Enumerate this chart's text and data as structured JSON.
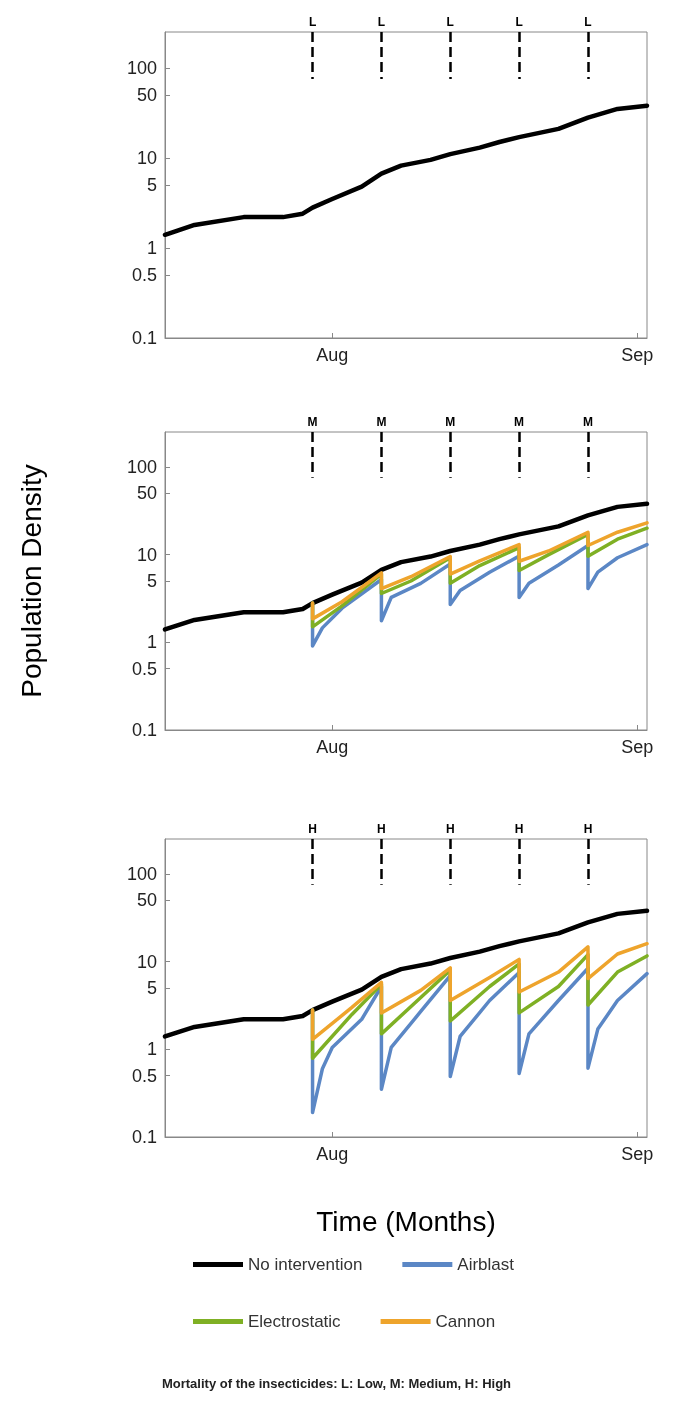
{
  "chart_data": [
    {
      "type": "line",
      "x": [
        "--07-15",
        "--07-18",
        "--07-23",
        "--07-27",
        "--07-29",
        "--07-30",
        "--08-01",
        "--08-04",
        "--08-06",
        "--08-08",
        "--08-11",
        "--08-13",
        "--08-16",
        "--08-18",
        "--08-20",
        "--08-24",
        "--08-27",
        "--08-30",
        "--09-02"
      ],
      "series": [
        {
          "color": "#000000",
          "values": [
            1.4,
            1.8,
            2.2,
            2.2,
            2.4,
            2.8,
            3.5,
            4.8,
            6.7,
            8.2,
            9.5,
            11,
            13,
            15,
            17,
            21,
            28,
            35,
            38
          ]
        }
      ],
      "xlim": [
        "--07-15",
        "--09-02"
      ],
      "xticks": [
        {
          "value": "--08-01",
          "label": "Aug"
        },
        {
          "value": "--09-01",
          "label": "Sep"
        }
      ],
      "ylim": [
        0.1,
        250
      ],
      "yticks": [
        0.1,
        0.5,
        1,
        5,
        10,
        50,
        100
      ],
      "log": "y",
      "grid": false,
      "legend": false,
      "marker": "none",
      "ref_lines": [
        {
          "axis": "x",
          "value": "--07-30",
          "label": "L",
          "line_style": "dashed",
          "color": "#000000"
        },
        {
          "axis": "x",
          "value": "--08-06",
          "label": "L",
          "line_style": "dashed",
          "color": "#000000"
        },
        {
          "axis": "x",
          "value": "--08-13",
          "label": "L",
          "line_style": "dashed",
          "color": "#000000"
        },
        {
          "axis": "x",
          "value": "--08-20",
          "label": "L",
          "line_style": "dashed",
          "color": "#000000"
        },
        {
          "axis": "x",
          "value": "--08-27",
          "label": "L",
          "line_style": "dashed",
          "color": "#000000"
        }
      ]
    },
    {
      "type": "line",
      "ylabel": "Population Density",
      "x": [
        "--07-15",
        "--07-18",
        "--07-23",
        "--07-27",
        "--07-29",
        "--07-30",
        "--08-01",
        "--08-04",
        "--08-06",
        "--08-08",
        "--08-11",
        "--08-13",
        "--08-16",
        "--08-18",
        "--08-20",
        "--08-24",
        "--08-27",
        "--08-30",
        "--09-02"
      ],
      "series": [
        {
          "color": "#000000",
          "values": [
            1.4,
            1.8,
            2.2,
            2.2,
            2.4,
            2.8,
            3.5,
            4.8,
            6.7,
            8.2,
            9.5,
            11,
            13,
            15,
            17,
            21,
            28,
            35,
            38
          ]
        },
        {
          "color": "#5b87c5",
          "x": [
            "--07-30",
            "--07-30",
            "--07-31",
            "--08-02",
            "--08-06",
            "--08-06",
            "--08-07",
            "--08-10",
            "--08-13",
            "--08-13",
            "--08-14",
            "--08-17",
            "--08-20",
            "--08-20",
            "--08-21",
            "--08-24",
            "--08-27",
            "--08-27",
            "--08-28",
            "--08-30",
            "--09-02"
          ],
          "values": [
            2.8,
            0.91,
            1.46,
            2.45,
            5.2,
            1.76,
            3.25,
            4.7,
            7.8,
            2.7,
            3.9,
            6.3,
            9.6,
            3.25,
            4.7,
            7.6,
            12.7,
            4.1,
            6.3,
            9.2,
            13
          ]
        },
        {
          "color": "#7fb024",
          "x": [
            "--07-30",
            "--07-30",
            "--08-02",
            "--08-06",
            "--08-06",
            "--08-09",
            "--08-13",
            "--08-13",
            "--08-16",
            "--08-20",
            "--08-20",
            "--08-23",
            "--08-27",
            "--08-27",
            "--08-30",
            "--09-02"
          ],
          "values": [
            2.8,
            1.5,
            2.6,
            6,
            3.6,
            5,
            9.2,
            4.7,
            7.5,
            12,
            6.6,
            10,
            17,
            9.6,
            15,
            20
          ]
        },
        {
          "color": "#eea42c",
          "x": [
            "--07-30",
            "--07-30",
            "--08-02",
            "--08-06",
            "--08-06",
            "--08-09",
            "--08-13",
            "--08-13",
            "--08-16",
            "--08-20",
            "--08-20",
            "--08-23",
            "--08-27",
            "--08-27",
            "--08-30",
            "--09-02"
          ],
          "values": [
            2.8,
            1.85,
            2.9,
            6.2,
            4.1,
            5.6,
            9.5,
            6,
            8.5,
            13,
            8.4,
            11,
            18,
            12.7,
            18,
            23
          ]
        }
      ],
      "xlim": [
        "--07-15",
        "--09-02"
      ],
      "xticks": [
        {
          "value": "--08-01",
          "label": "Aug"
        },
        {
          "value": "--09-01",
          "label": "Sep"
        }
      ],
      "ylim": [
        0.1,
        250
      ],
      "yticks": [
        0.1,
        0.5,
        1,
        5,
        10,
        50,
        100
      ],
      "log": "y",
      "grid": false,
      "legend": false,
      "marker": "none",
      "ref_lines": [
        {
          "axis": "x",
          "value": "--07-30",
          "label": "M",
          "line_style": "dashed",
          "color": "#000000"
        },
        {
          "axis": "x",
          "value": "--08-06",
          "label": "M",
          "line_style": "dashed",
          "color": "#000000"
        },
        {
          "axis": "x",
          "value": "--08-13",
          "label": "M",
          "line_style": "dashed",
          "color": "#000000"
        },
        {
          "axis": "x",
          "value": "--08-20",
          "label": "M",
          "line_style": "dashed",
          "color": "#000000"
        },
        {
          "axis": "x",
          "value": "--08-27",
          "label": "M",
          "line_style": "dashed",
          "color": "#000000"
        }
      ]
    },
    {
      "type": "line",
      "xlabel": "Time (Months)",
      "x": [
        "--07-15",
        "--07-18",
        "--07-23",
        "--07-27",
        "--07-29",
        "--07-30",
        "--08-01",
        "--08-04",
        "--08-06",
        "--08-08",
        "--08-11",
        "--08-13",
        "--08-16",
        "--08-18",
        "--08-20",
        "--08-24",
        "--08-27",
        "--08-30",
        "--09-02"
      ],
      "series": [
        {
          "name": "No intervention",
          "color": "#000000",
          "values": [
            1.4,
            1.8,
            2.2,
            2.2,
            2.4,
            2.8,
            3.5,
            4.8,
            6.7,
            8.2,
            9.5,
            11,
            13,
            15,
            17,
            21,
            28,
            35,
            38
          ]
        },
        {
          "name": "Airblast",
          "color": "#5b87c5",
          "x": [
            "--07-30",
            "--07-30",
            "--07-31",
            "--08-01",
            "--08-04",
            "--08-06",
            "--08-06",
            "--08-07",
            "--08-10",
            "--08-13",
            "--08-13",
            "--08-14",
            "--08-17",
            "--08-20",
            "--08-20",
            "--08-21",
            "--08-24",
            "--08-27",
            "--08-27",
            "--08-28",
            "--08-30",
            "--09-02"
          ],
          "values": [
            2.8,
            0.19,
            0.6,
            1.05,
            2.2,
            5.2,
            0.35,
            1.05,
            2.7,
            6.9,
            0.49,
            1.4,
            3.6,
            7.5,
            0.53,
            1.5,
            3.6,
            8.4,
            0.61,
            1.7,
            3.6,
            7.3
          ]
        },
        {
          "name": "Electrostatic",
          "color": "#7fb024",
          "x": [
            "--07-30",
            "--07-30",
            "--08-03",
            "--08-06",
            "--08-06",
            "--08-10",
            "--08-13",
            "--08-13",
            "--08-17",
            "--08-20",
            "--08-20",
            "--08-24",
            "--08-27",
            "--08-27",
            "--08-30",
            "--09-02"
          ],
          "values": [
            2.8,
            0.79,
            2.5,
            5.5,
            1.5,
            3.9,
            8,
            2.1,
            5.2,
            9.4,
            2.6,
            5.2,
            12,
            3.2,
            7.6,
            11.6
          ]
        },
        {
          "name": "Cannon",
          "color": "#eea42c",
          "x": [
            "--07-30",
            "--07-30",
            "--08-03",
            "--08-06",
            "--08-06",
            "--08-10",
            "--08-13",
            "--08-13",
            "--08-17",
            "--08-20",
            "--08-20",
            "--08-24",
            "--08-27",
            "--08-27",
            "--08-30",
            "--09-02"
          ],
          "values": [
            2.8,
            1.3,
            3,
            5.8,
            2.6,
            4.7,
            8.5,
            3.6,
            6.6,
            10.6,
            4.5,
            7.6,
            14.7,
            6.4,
            12.2,
            16
          ]
        }
      ],
      "xlim": [
        "--07-15",
        "--09-02"
      ],
      "xticks": [
        {
          "value": "--08-01",
          "label": "Aug"
        },
        {
          "value": "--09-01",
          "label": "Sep"
        }
      ],
      "ylim": [
        0.1,
        250
      ],
      "yticks": [
        0.1,
        0.5,
        1,
        5,
        10,
        50,
        100
      ],
      "log": "y",
      "grid": false,
      "legend": "bottom",
      "marker": "none",
      "ref_lines": [
        {
          "axis": "x",
          "value": "--07-30",
          "label": "H",
          "line_style": "dashed",
          "color": "#000000"
        },
        {
          "axis": "x",
          "value": "--08-06",
          "label": "H",
          "line_style": "dashed",
          "color": "#000000"
        },
        {
          "axis": "x",
          "value": "--08-13",
          "label": "H",
          "line_style": "dashed",
          "color": "#000000"
        },
        {
          "axis": "x",
          "value": "--08-20",
          "label": "H",
          "line_style": "dashed",
          "color": "#000000"
        },
        {
          "axis": "x",
          "value": "--08-27",
          "label": "H",
          "line_style": "dashed",
          "color": "#000000"
        }
      ],
      "annotations": [
        "Mortality of the insecticides: L: Low, M: Medium, H: High"
      ]
    }
  ]
}
